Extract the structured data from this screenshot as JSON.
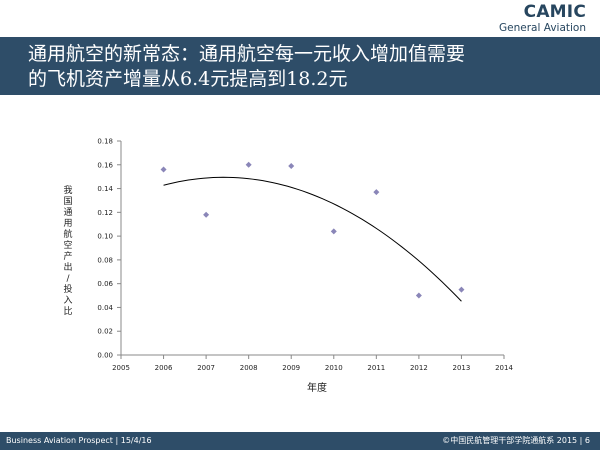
{
  "logo": {
    "brand": "CAMIC",
    "subtitle": "General Aviation"
  },
  "title": {
    "line1": "通用航空的新常态：通用航空每一元收入增加值需要",
    "line2": "的飞机资产增量从6.4元提高到18.2元"
  },
  "footer": {
    "left": "Business Aviation Prospect | 15/4/16",
    "right": "©中国民航管理干部学院通航系 2015 | 6"
  },
  "colors": {
    "band": "#2e4d68",
    "marker": "#8a86b8",
    "trend": "#000000"
  },
  "chart_data": {
    "type": "scatter",
    "xlabel": "年度",
    "ylabel": "我国通用航空产出/投入比",
    "xlim": [
      2005,
      2014
    ],
    "ylim": [
      0,
      0.18
    ],
    "x_ticks": [
      "2005",
      "2006",
      "2007",
      "2008",
      "2009",
      "2010",
      "2011",
      "2012",
      "2013",
      "2014"
    ],
    "y_ticks": [
      "0.00",
      "0.02",
      "0.04",
      "0.06",
      "0.08",
      "0.10",
      "0.12",
      "0.14",
      "0.16",
      "0.18"
    ],
    "grid": false,
    "points": [
      {
        "x": 2006,
        "y": 0.156
      },
      {
        "x": 2007,
        "y": 0.118
      },
      {
        "x": 2008,
        "y": 0.16
      },
      {
        "x": 2009,
        "y": 0.159
      },
      {
        "x": 2010,
        "y": 0.104
      },
      {
        "x": 2011,
        "y": 0.137
      },
      {
        "x": 2012,
        "y": 0.05
      },
      {
        "x": 2013,
        "y": 0.055
      }
    ],
    "trendline": {
      "type": "polynomial",
      "degree": 2,
      "x_range": [
        2006,
        2013
      ]
    }
  }
}
